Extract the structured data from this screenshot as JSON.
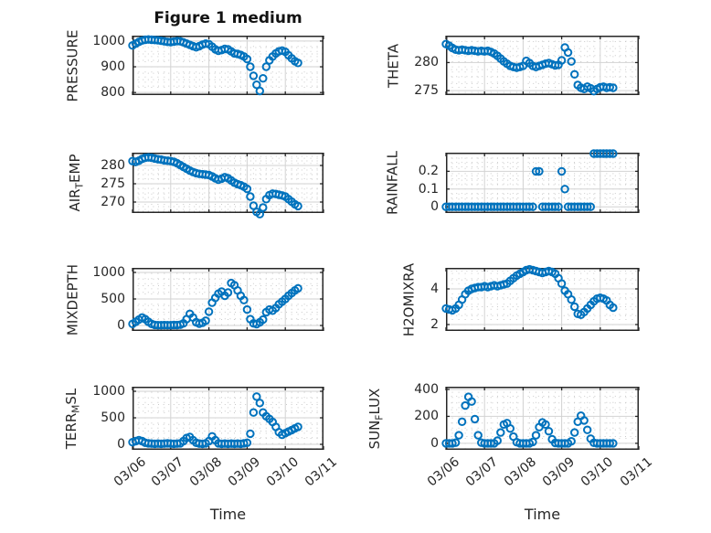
{
  "title": "Figure 1 medium",
  "xlabel": "Time",
  "colors": {
    "marker": "#0072BD",
    "axes": "#262626",
    "major_grid": "#d2d2d2",
    "minor_grid": "#c9c9c9",
    "text": "#262626"
  },
  "x_tick_labels": [
    "03/06",
    "03/07",
    "03/08",
    "03/09",
    "03/10",
    "03/11"
  ],
  "x_days": [
    0,
    0.083,
    0.167,
    0.25,
    0.333,
    0.417,
    0.5,
    0.583,
    0.667,
    0.75,
    0.833,
    0.917,
    1,
    1.083,
    1.167,
    1.25,
    1.333,
    1.417,
    1.5,
    1.583,
    1.667,
    1.75,
    1.833,
    1.917,
    2,
    2.083,
    2.167,
    2.25,
    2.333,
    2.417,
    2.5,
    2.583,
    2.667,
    2.75,
    2.833,
    2.917,
    3,
    3.083,
    3.167,
    3.25,
    3.333,
    3.417,
    3.5,
    3.583,
    3.667,
    3.75,
    3.833,
    3.917,
    4,
    4.083,
    4.167,
    4.25,
    4.333
  ],
  "chart_data": [
    {
      "type": "scatter",
      "name": "PRESSURE",
      "ylabel_parts": [
        {
          "text": "PRESSURE",
          "sub": false
        }
      ],
      "xlim": [
        0,
        5
      ],
      "ylim": [
        790,
        1021
      ],
      "yticks": [
        800,
        900,
        1000
      ],
      "y": [
        983,
        990,
        997,
        1002,
        1005,
        1006,
        1005,
        1004,
        1003,
        1001,
        999,
        997,
        996,
        998,
        1000,
        999,
        995,
        990,
        985,
        980,
        976,
        980,
        986,
        990,
        988,
        978,
        968,
        962,
        965,
        970,
        968,
        960,
        952,
        950,
        946,
        940,
        930,
        900,
        865,
        830,
        806,
        855,
        900,
        925,
        940,
        952,
        960,
        963,
        958,
        945,
        933,
        922,
        915
      ]
    },
    {
      "type": "scatter",
      "name": "THETA",
      "ylabel_parts": [
        {
          "text": "THETA",
          "sub": false
        }
      ],
      "xlim": [
        0,
        5
      ],
      "ylim": [
        274.2,
        284.8
      ],
      "yticks": [
        275,
        280
      ],
      "y": [
        283.3,
        283,
        282.6,
        282.3,
        282.2,
        282.3,
        282.2,
        282.1,
        282.2,
        282.1,
        282,
        282.1,
        282,
        282.1,
        281.9,
        281.6,
        281.2,
        280.7,
        280.2,
        279.8,
        279.4,
        279.2,
        279.1,
        279.2,
        279.4,
        280.3,
        279.9,
        279.4,
        279.2,
        279.4,
        279.6,
        279.8,
        279.9,
        279.7,
        279.5,
        279.6,
        280.4,
        282.7,
        281.8,
        280.2,
        277.9,
        276,
        275.5,
        275.3,
        275.7,
        275.4,
        274.9,
        275.3,
        275.6,
        275.7,
        275.5,
        275.6,
        275.5
      ]
    },
    {
      "type": "scatter",
      "name": "AIR_TEMP",
      "ylabel_parts": [
        {
          "text": "AIR",
          "sub": false
        },
        {
          "text": "T",
          "sub": true
        },
        {
          "text": "EMP",
          "sub": false
        }
      ],
      "xlim": [
        0,
        5
      ],
      "ylim": [
        267,
        283.5
      ],
      "yticks": [
        270,
        275,
        280
      ],
      "y": [
        281.2,
        281,
        281.3,
        281.8,
        282.1,
        282.2,
        282.1,
        281.9,
        281.7,
        281.6,
        281.4,
        281.3,
        281.2,
        281,
        280.6,
        280.1,
        279.6,
        279.1,
        278.6,
        278.2,
        277.9,
        277.7,
        277.6,
        277.5,
        277.4,
        277,
        276.5,
        276.1,
        276.4,
        276.8,
        276.5,
        275.9,
        275.3,
        274.9,
        274.6,
        274.2,
        273.6,
        271.5,
        269,
        267.3,
        266.7,
        268.5,
        270.8,
        271.9,
        272.3,
        272.2,
        272,
        271.8,
        271.5,
        270.8,
        270.1,
        269.4,
        268.9
      ]
    },
    {
      "type": "scatter",
      "name": "RAINFALL",
      "ylabel_parts": [
        {
          "text": "RAINFALL",
          "sub": false
        }
      ],
      "xlim": [
        0,
        5
      ],
      "ylim": [
        -0.035,
        0.305
      ],
      "yticks": [
        0,
        0.1,
        0.2
      ],
      "y": [
        0,
        0,
        0,
        0,
        0,
        0,
        0,
        0,
        0,
        0,
        0,
        0,
        0,
        0,
        0,
        0,
        0,
        0,
        0,
        0,
        0,
        0,
        0,
        0,
        0,
        0,
        0,
        0,
        0.2,
        0.2,
        0,
        0,
        0,
        0,
        0,
        0,
        0.2,
        0.1,
        0,
        0,
        0,
        0,
        0,
        0,
        0,
        0,
        0.3,
        0.3,
        0.3,
        0.3,
        0.3,
        0.3,
        0.3
      ]
    },
    {
      "type": "scatter",
      "name": "MIXDEPTH",
      "ylabel_parts": [
        {
          "text": "MIXDEPTH",
          "sub": false
        }
      ],
      "xlim": [
        0,
        5
      ],
      "ylim": [
        -103,
        1086
      ],
      "yticks": [
        0,
        500,
        1000
      ],
      "y": [
        30,
        70,
        110,
        150,
        120,
        70,
        30,
        10,
        5,
        5,
        8,
        5,
        5,
        10,
        8,
        15,
        40,
        120,
        220,
        150,
        60,
        35,
        50,
        90,
        260,
        430,
        520,
        600,
        640,
        560,
        620,
        800,
        760,
        660,
        560,
        480,
        300,
        120,
        40,
        25,
        60,
        110,
        250,
        300,
        280,
        330,
        400,
        450,
        500,
        560,
        610,
        660,
        700
      ]
    },
    {
      "type": "scatter",
      "name": "H2OMIXRA",
      "ylabel_parts": [
        {
          "text": "H2OMIXRA",
          "sub": false
        }
      ],
      "xlim": [
        0,
        5
      ],
      "ylim": [
        1.64,
        5.18
      ],
      "yticks": [
        2,
        4
      ],
      "y": [
        2.9,
        2.85,
        2.8,
        2.9,
        3.1,
        3.4,
        3.7,
        3.9,
        4,
        4.05,
        4.1,
        4.1,
        4.15,
        4.1,
        4.15,
        4.2,
        4.15,
        4.2,
        4.25,
        4.3,
        4.45,
        4.6,
        4.75,
        4.85,
        4.95,
        5.05,
        5.1,
        5.05,
        5,
        4.95,
        4.9,
        4.95,
        5,
        4.95,
        4.85,
        4.6,
        4.3,
        3.9,
        3.7,
        3.4,
        3,
        2.6,
        2.55,
        2.7,
        2.9,
        3.1,
        3.3,
        3.45,
        3.5,
        3.45,
        3.35,
        3.1,
        2.95
      ]
    },
    {
      "type": "scatter",
      "name": "TERR_MSL",
      "ylabel_parts": [
        {
          "text": "TERR",
          "sub": false
        },
        {
          "text": "M",
          "sub": true
        },
        {
          "text": "SL",
          "sub": false
        }
      ],
      "xlim": [
        0,
        5
      ],
      "ylim": [
        -103,
        1086
      ],
      "yticks": [
        0,
        500,
        1000
      ],
      "y": [
        40,
        60,
        80,
        60,
        30,
        20,
        15,
        10,
        15,
        10,
        15,
        20,
        15,
        10,
        15,
        20,
        60,
        120,
        140,
        80,
        30,
        15,
        10,
        20,
        60,
        150,
        80,
        20,
        10,
        15,
        10,
        15,
        10,
        15,
        10,
        20,
        30,
        200,
        600,
        900,
        780,
        600,
        530,
        480,
        420,
        330,
        230,
        180,
        210,
        240,
        270,
        300,
        330
      ]
    },
    {
      "type": "scatter",
      "name": "SUN_FLUX",
      "ylabel_parts": [
        {
          "text": "SUN",
          "sub": false
        },
        {
          "text": "F",
          "sub": true
        },
        {
          "text": "LUX",
          "sub": false
        }
      ],
      "xlim": [
        0,
        5
      ],
      "ylim": [
        -48,
        420
      ],
      "yticks": [
        0,
        200,
        400
      ],
      "y": [
        0,
        0,
        0,
        5,
        60,
        160,
        280,
        345,
        310,
        180,
        60,
        5,
        0,
        0,
        0,
        0,
        20,
        80,
        140,
        150,
        110,
        50,
        8,
        0,
        0,
        0,
        0,
        10,
        60,
        120,
        155,
        140,
        90,
        30,
        3,
        0,
        0,
        0,
        0,
        15,
        80,
        160,
        205,
        170,
        100,
        35,
        4,
        0,
        0,
        0,
        0,
        0,
        0
      ]
    }
  ]
}
